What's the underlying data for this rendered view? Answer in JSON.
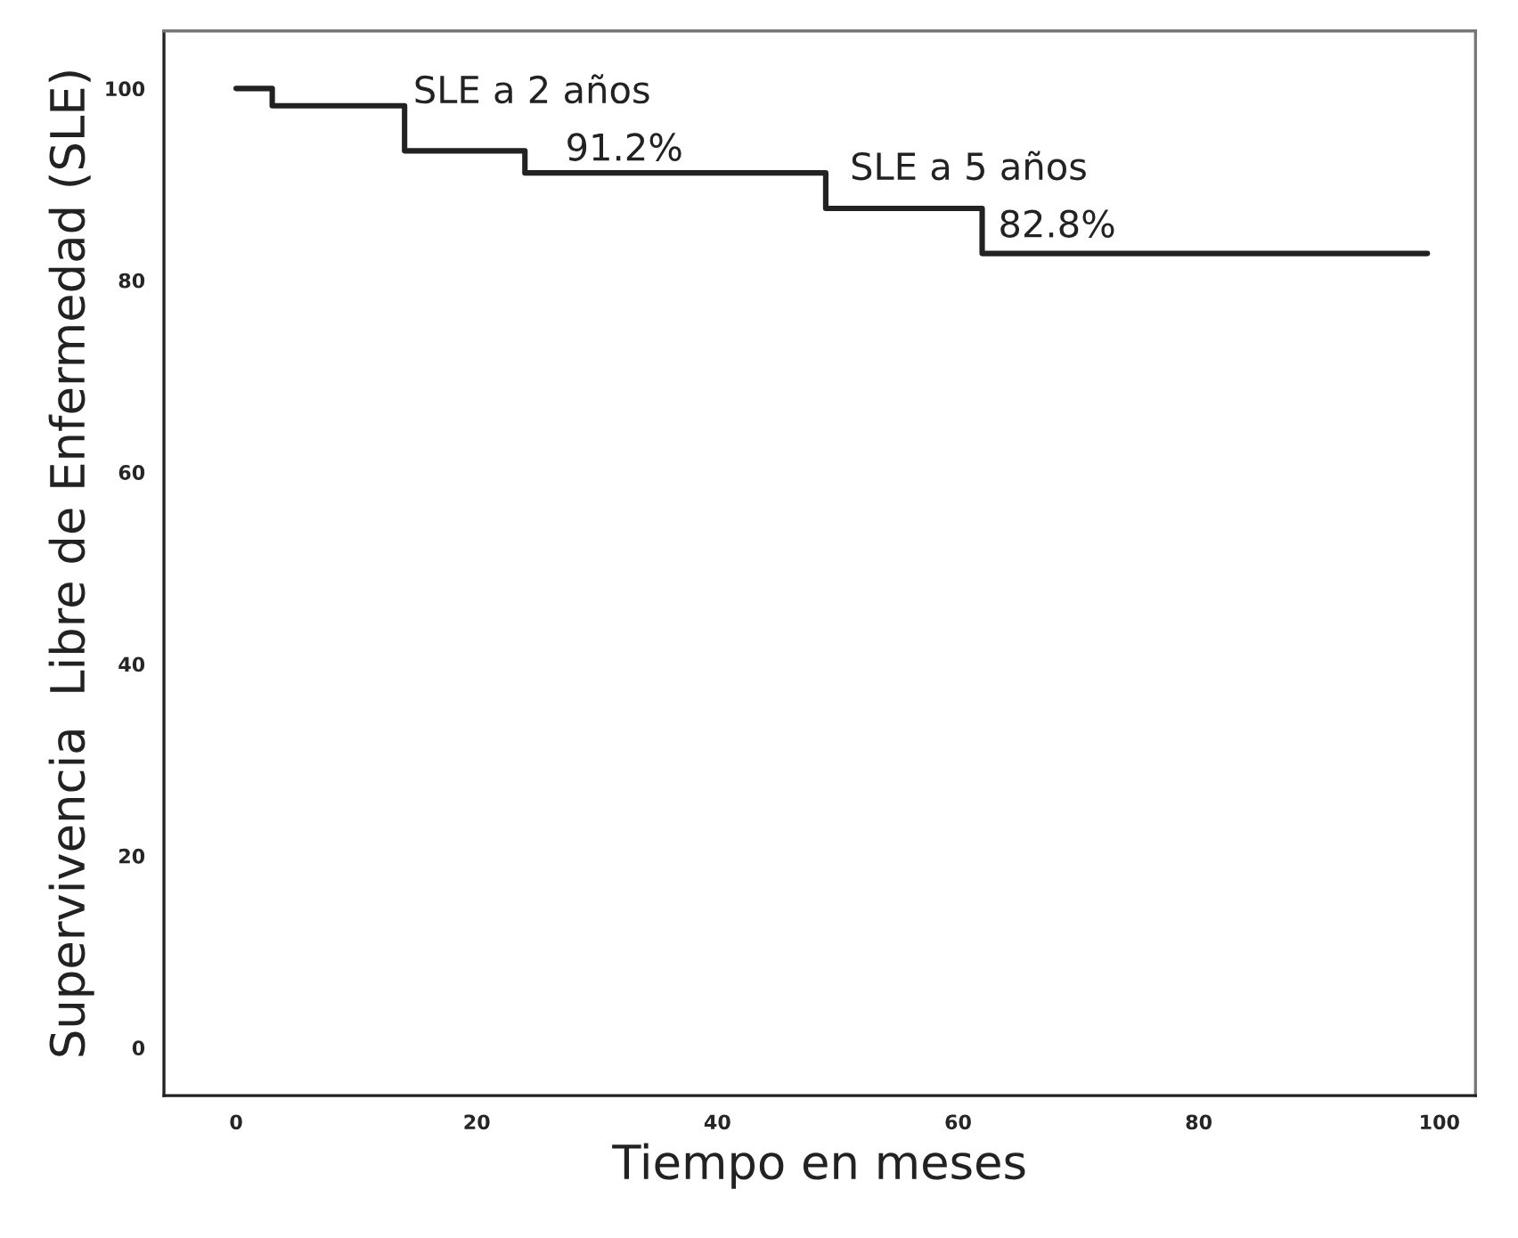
{
  "chart_data": {
    "type": "step",
    "xlabel": "Tiempo en meses",
    "ylabel": "Supervivencia  Libre de Enfermedad (SLE)",
    "x": [
      0,
      3,
      14,
      24,
      49,
      62,
      99
    ],
    "series": [
      {
        "color": "#222222",
        "values": [
          100,
          98.2,
          93.5,
          91.2,
          87.5,
          82.8,
          82.8
        ]
      }
    ],
    "xlim": [
      -6,
      103
    ],
    "ylim": [
      -5,
      106
    ],
    "xticks": [
      0,
      20,
      40,
      60,
      80,
      100
    ],
    "yticks": [
      0,
      20,
      40,
      60,
      80,
      100
    ],
    "annotations": [
      "SLE a 2 años",
      "91.2%",
      "SLE a 5 años",
      "82.8%"
    ],
    "grid": false,
    "legend": false,
    "marker": "none",
    "line_style": "solid"
  }
}
